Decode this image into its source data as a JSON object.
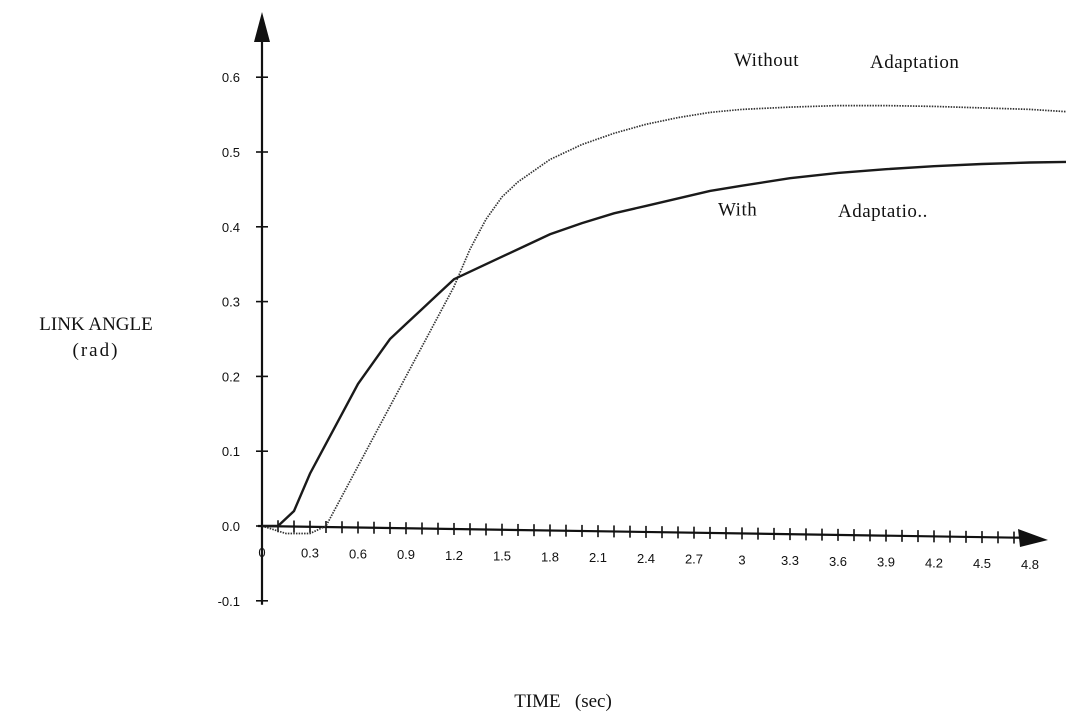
{
  "chart_data": {
    "type": "line",
    "ylabel": "LINK ANGLE",
    "ylabel_unit": "(rad)",
    "xlabel": "TIME   (sec)",
    "xlim": [
      0,
      5.2
    ],
    "ylim": [
      -0.1,
      0.7
    ],
    "grid": false,
    "x_ticks": [
      0,
      0.3,
      0.6,
      0.9,
      1.2,
      1.5,
      1.8,
      2.1,
      2.4,
      2.7,
      3,
      3.3,
      3.6,
      3.9,
      4.2,
      4.5,
      4.8
    ],
    "x_tick_labels": [
      "0",
      "0.3",
      "0.6",
      "0.9",
      "1.2",
      "1.5",
      "1.8",
      "2.1",
      "2.4",
      "2.7",
      "3",
      "3.3",
      "3.6",
      "3.9",
      "4.2",
      "4.5",
      "4.8"
    ],
    "x_minor_step": 0.1,
    "y_ticks": [
      -0.1,
      0.0,
      0.1,
      0.2,
      0.3,
      0.4,
      0.5,
      0.6
    ],
    "y_tick_labels": [
      "-0.1",
      "0.0",
      "0.1",
      "0.2",
      "0.3",
      "0.4",
      "0.5",
      "0.6"
    ],
    "series": [
      {
        "name": "Without Adaptation",
        "style": "dotted",
        "x": [
          0,
          0.15,
          0.3,
          0.4,
          0.5,
          0.6,
          0.7,
          0.8,
          0.9,
          1.0,
          1.1,
          1.2,
          1.3,
          1.4,
          1.5,
          1.6,
          1.8,
          2.0,
          2.2,
          2.4,
          2.6,
          2.8,
          3.0,
          3.3,
          3.6,
          3.9,
          4.2,
          4.5,
          4.8,
          5.1
        ],
        "y": [
          0,
          -0.01,
          -0.01,
          0.0,
          0.04,
          0.08,
          0.12,
          0.16,
          0.2,
          0.24,
          0.28,
          0.32,
          0.37,
          0.41,
          0.44,
          0.46,
          0.49,
          0.51,
          0.525,
          0.537,
          0.546,
          0.553,
          0.557,
          0.56,
          0.562,
          0.562,
          0.561,
          0.559,
          0.557,
          0.553
        ]
      },
      {
        "name": "With Adaptation",
        "style": "solid",
        "x": [
          0,
          0.1,
          0.2,
          0.3,
          0.4,
          0.5,
          0.6,
          0.7,
          0.8,
          0.9,
          1.0,
          1.1,
          1.2,
          1.35,
          1.5,
          1.65,
          1.8,
          2.0,
          2.2,
          2.4,
          2.6,
          2.8,
          3.0,
          3.3,
          3.6,
          3.9,
          4.2,
          4.5,
          4.8,
          5.1
        ],
        "y": [
          0,
          0.0,
          0.02,
          0.07,
          0.11,
          0.15,
          0.19,
          0.22,
          0.25,
          0.27,
          0.29,
          0.31,
          0.33,
          0.345,
          0.36,
          0.375,
          0.39,
          0.405,
          0.418,
          0.428,
          0.438,
          0.448,
          0.455,
          0.465,
          0.472,
          0.477,
          0.481,
          0.484,
          0.486,
          0.487
        ]
      }
    ],
    "annotations": [
      {
        "text": "Without",
        "anchor_x": 2.95,
        "anchor_y": 0.615
      },
      {
        "text": "Adaptation",
        "anchor_x": 3.8,
        "anchor_y": 0.612
      },
      {
        "text": "With",
        "anchor_x": 2.85,
        "anchor_y": 0.415
      },
      {
        "text": "Adaptatio..",
        "anchor_x": 3.6,
        "anchor_y": 0.413
      }
    ]
  }
}
